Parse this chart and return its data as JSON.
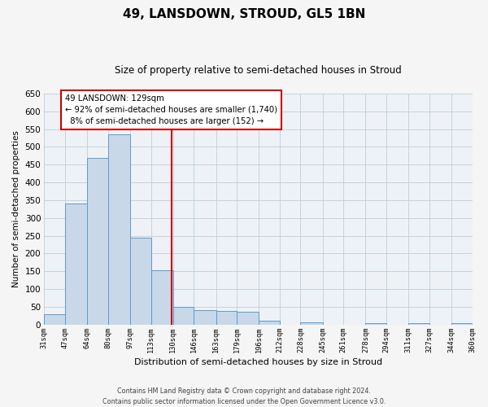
{
  "title": "49, LANSDOWN, STROUD, GL5 1BN",
  "subtitle": "Size of property relative to semi-detached houses in Stroud",
  "xlabel": "Distribution of semi-detached houses by size in Stroud",
  "ylabel": "Number of semi-detached properties",
  "bar_values": [
    30,
    340,
    470,
    535,
    245,
    152,
    50,
    40,
    38,
    35,
    12,
    0,
    6,
    0,
    0,
    5,
    0,
    5,
    0,
    5
  ],
  "bin_labels": [
    "31sqm",
    "47sqm",
    "64sqm",
    "80sqm",
    "97sqm",
    "113sqm",
    "130sqm",
    "146sqm",
    "163sqm",
    "179sqm",
    "196sqm",
    "212sqm",
    "228sqm",
    "245sqm",
    "261sqm",
    "278sqm",
    "294sqm",
    "311sqm",
    "327sqm",
    "344sqm",
    "360sqm"
  ],
  "bar_left_edges": [
    31,
    47,
    64,
    80,
    97,
    113,
    130,
    146,
    163,
    179,
    196,
    212,
    228,
    245,
    261,
    278,
    294,
    311,
    327,
    344
  ],
  "bar_widths": [
    16,
    17,
    16,
    17,
    16,
    17,
    16,
    17,
    16,
    17,
    16,
    16,
    17,
    16,
    17,
    16,
    17,
    16,
    17,
    16
  ],
  "property_size": 129,
  "pct_smaller": 92,
  "n_smaller": 1740,
  "pct_larger": 8,
  "n_larger": 152,
  "bar_color": "#c8d8e8",
  "bar_edge_color": "#5b9bd5",
  "vline_color": "#cc0000",
  "annotation_box_edge": "#cc0000",
  "ylim": [
    0,
    650
  ],
  "yticks": [
    0,
    50,
    100,
    150,
    200,
    250,
    300,
    350,
    400,
    450,
    500,
    550,
    600,
    650
  ],
  "grid_color": "#c0ccd8",
  "bg_color": "#eef2f6",
  "fig_bg_color": "#f5f5f5",
  "footer": "Contains HM Land Registry data © Crown copyright and database right 2024.\nContains public sector information licensed under the Open Government Licence v3.0."
}
